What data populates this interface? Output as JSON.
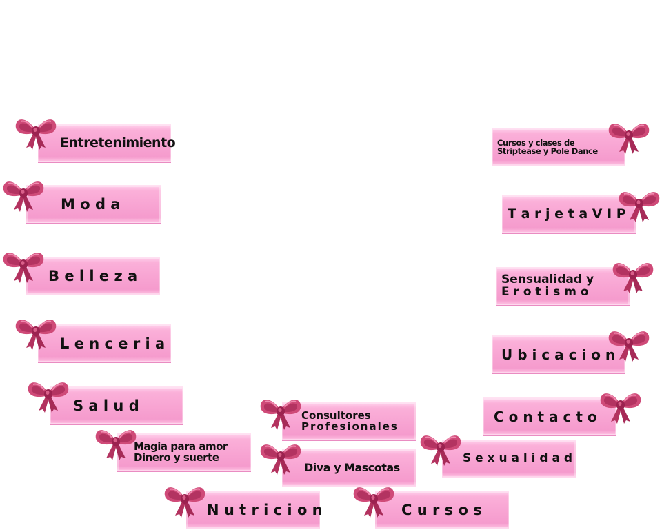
{
  "colors": {
    "button_pink": "#f8a5d3",
    "bow_dark": "#a62a57",
    "bow_mid": "#cf4a78",
    "text": "#111111",
    "background": "#ffffff"
  },
  "menu": {
    "entretenimiento": "Entretenimiento",
    "moda": "M o d a",
    "belleza": "B e l l e z a",
    "lenceria": "L e n c e r i a",
    "salud": "S a l u d",
    "magia_line1": "Magia para amor",
    "magia_line2": "Dinero y suerte",
    "nutricion": "N u t r i c i o n",
    "consultores_line1": "Consultores",
    "consultores_line2": "Profesionales",
    "diva_mascotas": "Diva y Mascotas",
    "cursos": "C u r s o s",
    "sexualidad": "S e x u a l i d a d",
    "contacto": "C o n t a c t o",
    "ubicacion": "U b i c a c i o n",
    "sensualidad_line1": "Sensualidad y",
    "sensualidad_line2": "E r o t i s m o",
    "tarjeta_vip": "T a r j e t a V I P",
    "striptease_line1": "Cursos y clases de",
    "striptease_line2": "Striptease y Pole Dance"
  },
  "icons": {
    "bow": "pink-ribbon-bow-icon"
  }
}
